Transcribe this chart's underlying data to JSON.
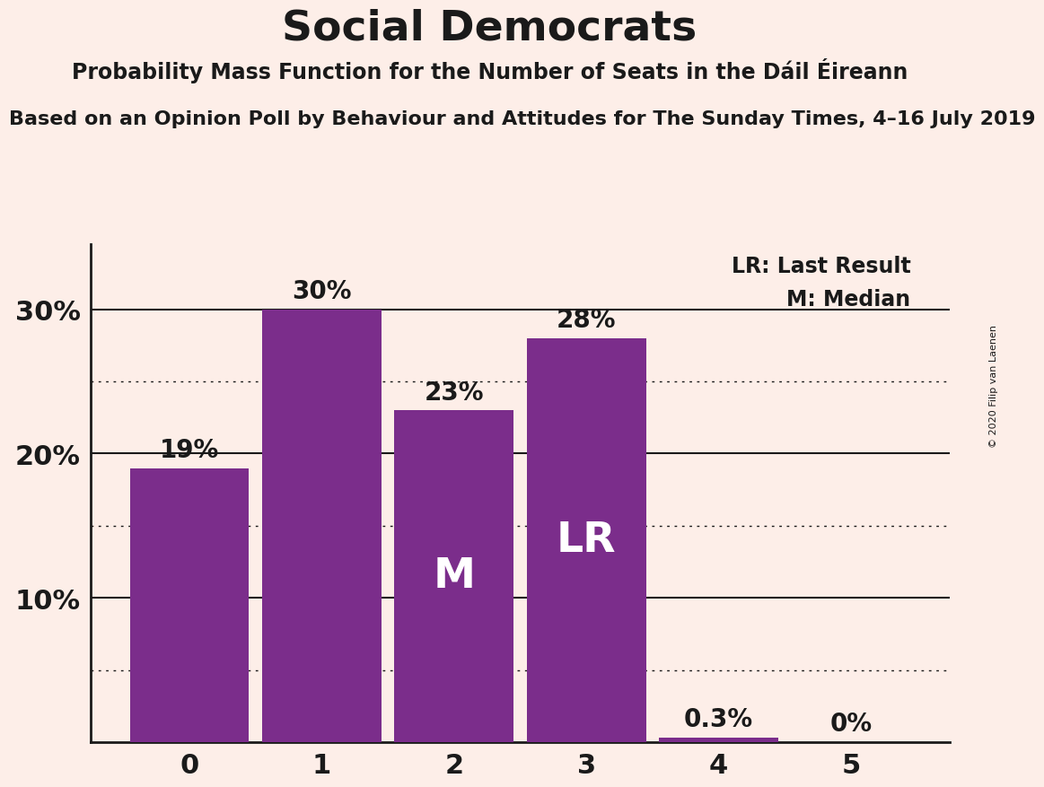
{
  "title": "Social Democrats",
  "subtitle": "Probability Mass Function for the Number of Seats in the Dáil Éireann",
  "source_line": "Based on an Opinion Poll by Behaviour and Attitudes for The Sunday Times, 4–16 July 2019",
  "copyright": "© 2020 Filip van Laenen",
  "categories": [
    0,
    1,
    2,
    3,
    4,
    5
  ],
  "values": [
    0.19,
    0.3,
    0.23,
    0.28,
    0.003,
    0.0
  ],
  "bar_color": "#7B2D8B",
  "bar_labels": [
    "19%",
    "30%",
    "23%",
    "28%",
    "0.3%",
    "0%"
  ],
  "background_color": "#FDEEE8",
  "text_color": "#1a1a1a",
  "median_bar": 2,
  "last_result_bar": 3,
  "median_label": "M",
  "lr_label": "LR",
  "legend_lr": "LR: Last Result",
  "legend_m": "M: Median",
  "yticks": [
    0.0,
    0.1,
    0.2,
    0.3
  ],
  "ytick_labels": [
    "",
    "10%",
    "20%",
    "30%"
  ],
  "ylim": [
    0,
    0.345
  ],
  "solid_grid_values": [
    0.1,
    0.2,
    0.3
  ],
  "dotted_grid_values": [
    0.05,
    0.15,
    0.25
  ]
}
